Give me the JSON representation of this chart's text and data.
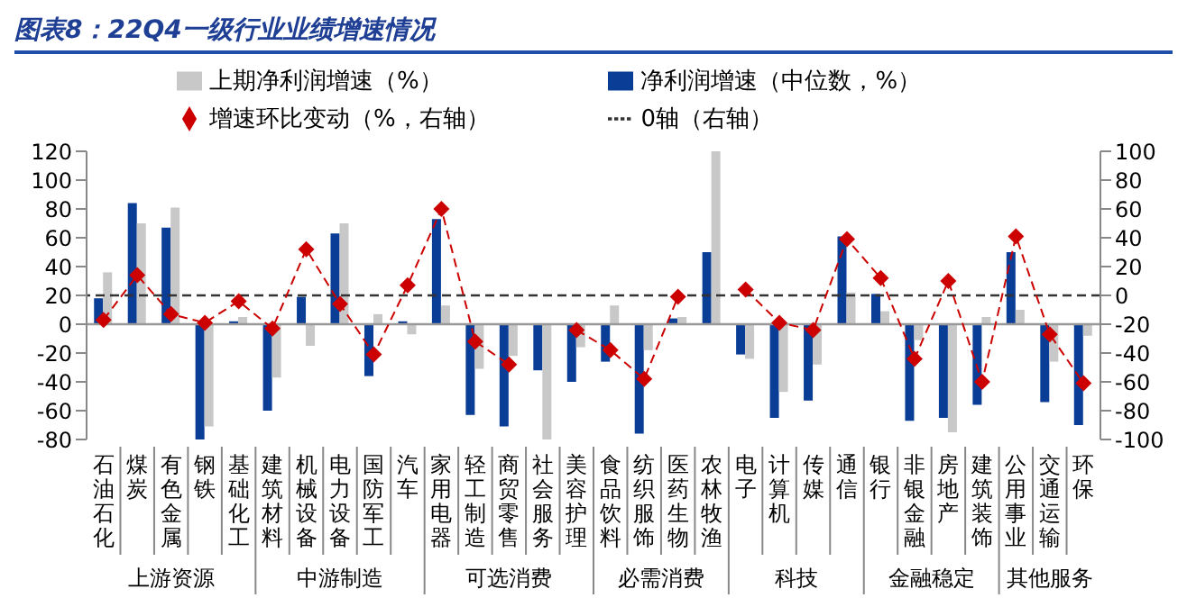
{
  "chart_data": {
    "type": "bar",
    "title": "图表8：22Q4一级行业业绩增速情况",
    "categories": [
      "石油石化",
      "煤炭",
      "有色金属",
      "钢铁",
      "基础化工",
      "建筑材料",
      "机械设备",
      "电力设备",
      "国防军工",
      "汽车",
      "家用电器",
      "轻工制造",
      "商贸零售",
      "社会服务",
      "美容护理",
      "食品饮料",
      "纺织服饰",
      "医药生物",
      "农林牧渔",
      "电子",
      "计算机",
      "传媒",
      "通信",
      "银行",
      "非银金融",
      "房地产",
      "建筑装饰",
      "公用事业",
      "交通运输",
      "环保"
    ],
    "series": [
      {
        "name": "净利润增速（中位数，%）",
        "color": "#0a3d96",
        "values": [
          18,
          84,
          67,
          -80,
          2,
          -60,
          19,
          63,
          -36,
          2,
          73,
          -63,
          -71,
          -32,
          -40,
          -26,
          -76,
          4,
          50,
          -21,
          -65,
          -53,
          61,
          21,
          -67,
          -65,
          -56,
          50,
          -54,
          -70
        ]
      },
      {
        "name": "上期净利润增速（%）",
        "color": "#c8c8c8",
        "values": [
          36,
          70,
          81,
          -71,
          5,
          -37,
          -15,
          70,
          7,
          -7,
          13,
          -31,
          -22,
          -80,
          -16,
          13,
          -18,
          5,
          120,
          -24,
          -47,
          -28,
          22,
          9,
          -11,
          -75,
          5,
          10,
          -26,
          -8
        ]
      },
      {
        "name": "增速环比变动（%，右轴）",
        "type": "line",
        "axis": "y2",
        "color": "#cc0000",
        "marker": "diamond",
        "line_style": "dashed",
        "values": [
          -17,
          14,
          -13,
          -19,
          -4,
          -23,
          32,
          -6,
          -41,
          7,
          60,
          -32,
          -48,
          null,
          -24,
          -38,
          -58,
          -1,
          null,
          4,
          -19,
          -24,
          39,
          12,
          -44,
          10,
          -60,
          41,
          -27,
          -61
        ]
      }
    ],
    "ylim": [
      -80,
      120
    ],
    "yticks": [
      -80,
      -60,
      -40,
      -20,
      0,
      20,
      40,
      60,
      80,
      100,
      120
    ],
    "y2lim": [
      -100,
      100
    ],
    "y2ticks": [
      -100,
      -80,
      -60,
      -40,
      -20,
      0,
      20,
      40,
      60,
      80,
      100
    ],
    "ref_lines": [
      {
        "axis": "y",
        "value": 0,
        "color": "#999999",
        "line_style": "solid"
      },
      {
        "axis": "y2",
        "value": 0,
        "label": "0轴（右轴）",
        "color": "#333333",
        "line_style": "dashed"
      }
    ],
    "annotations": [
      "上游资源",
      "中游制造",
      "可选消费",
      "必需消费",
      "科技",
      "金融稳定",
      "其他服务"
    ],
    "legend": "top",
    "grid": false
  }
}
